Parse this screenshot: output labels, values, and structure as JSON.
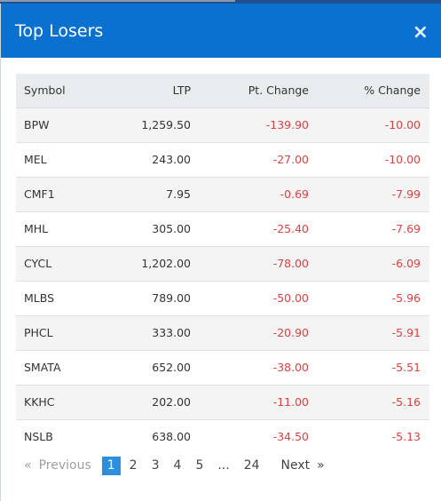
{
  "dialog": {
    "title": "Top Losers",
    "close_glyph": "×"
  },
  "table": {
    "headers": [
      "Symbol",
      "LTP",
      "Pt. Change",
      "% Change"
    ],
    "rows": [
      {
        "symbol": "BPW",
        "ltp": "1,259.50",
        "pt": "-139.90",
        "pct": "-10.00"
      },
      {
        "symbol": "MEL",
        "ltp": "243.00",
        "pt": "-27.00",
        "pct": "-10.00"
      },
      {
        "symbol": "CMF1",
        "ltp": "7.95",
        "pt": "-0.69",
        "pct": "-7.99"
      },
      {
        "symbol": "MHL",
        "ltp": "305.00",
        "pt": "-25.40",
        "pct": "-7.69"
      },
      {
        "symbol": "CYCL",
        "ltp": "1,202.00",
        "pt": "-78.00",
        "pct": "-6.09"
      },
      {
        "symbol": "MLBS",
        "ltp": "789.00",
        "pt": "-50.00",
        "pct": "-5.96"
      },
      {
        "symbol": "PHCL",
        "ltp": "333.00",
        "pt": "-20.90",
        "pct": "-5.91"
      },
      {
        "symbol": "SMATA",
        "ltp": "652.00",
        "pt": "-38.00",
        "pct": "-5.51"
      },
      {
        "symbol": "KKHC",
        "ltp": "202.00",
        "pt": "-11.00",
        "pct": "-5.16"
      },
      {
        "symbol": "NSLB",
        "ltp": "638.00",
        "pt": "-34.50",
        "pct": "-5.13"
      }
    ]
  },
  "pagination": {
    "prev_arrow": "«",
    "prev_label": "Previous",
    "pages": [
      "1",
      "2",
      "3",
      "4",
      "5"
    ],
    "ellipsis": "...",
    "last_page": "24",
    "next_label": "Next",
    "next_arrow": "»",
    "active_page": "1"
  },
  "colors": {
    "header_bg": "#0b71d1",
    "negative": "#e0403f",
    "active_page_bg": "#2b8fde"
  }
}
